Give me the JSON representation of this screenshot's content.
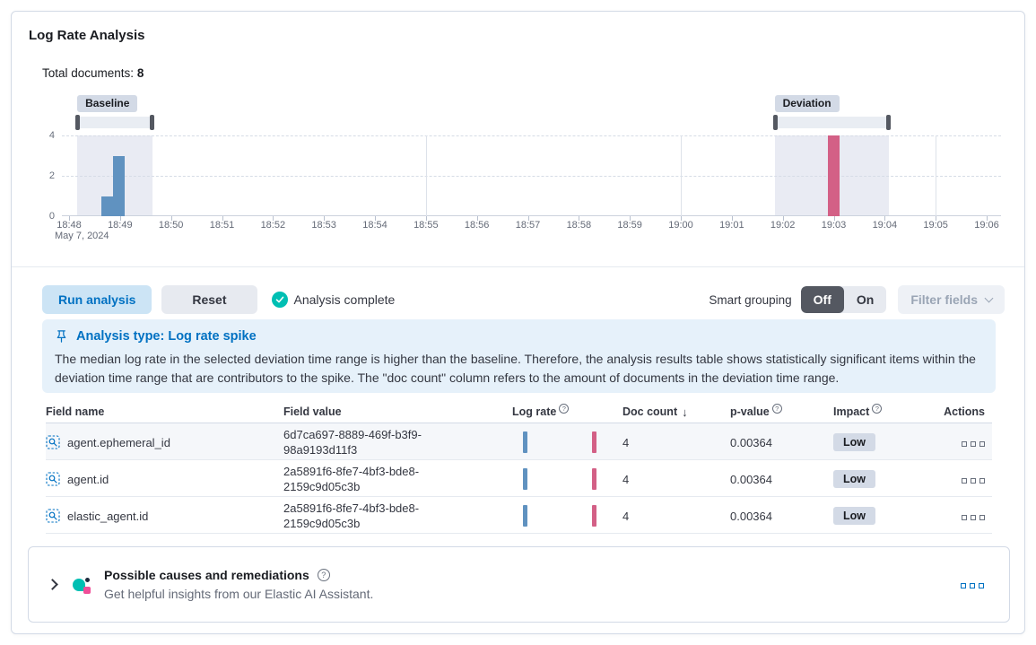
{
  "panel": {
    "title": "Log Rate Analysis"
  },
  "summary": {
    "label": "Total documents:",
    "value": "8"
  },
  "chart": {
    "baseline_badge": "Baseline",
    "deviation_badge": "Deviation",
    "date_label": "May 7, 2024",
    "y_ticks": [
      "4",
      "2",
      "0"
    ],
    "x_ticks": [
      "18:48",
      "18:49",
      "18:50",
      "18:51",
      "18:52",
      "18:53",
      "18:54",
      "18:55",
      "18:56",
      "18:57",
      "18:58",
      "18:59",
      "19:00",
      "19:01",
      "19:02",
      "19:03",
      "19:04",
      "19:05",
      "19:06"
    ]
  },
  "chart_data": {
    "type": "bar",
    "title": "Document count over time",
    "x_unit": "minutes offset from 18:48, May 7, 2024",
    "ylim": [
      0,
      4
    ],
    "y_gridline_values": [
      4,
      2
    ],
    "major_vertical_gridlines": [
      "18:55",
      "19:00",
      "19:05"
    ],
    "bars": [
      {
        "minute_offset": 0.75,
        "value": 1,
        "series": "baseline"
      },
      {
        "minute_offset": 0.97,
        "value": 3,
        "series": "baseline"
      },
      {
        "minute_offset": 15.0,
        "value": 4,
        "series": "deviation"
      }
    ],
    "baseline_range": {
      "from": 0.16,
      "to": 1.63
    },
    "deviation_range": {
      "from": 13.84,
      "to": 16.09
    },
    "colors": {
      "baseline_bar": "#6092c0",
      "deviation_bar": "#d36086",
      "selection_fill": "#e9ebf3"
    }
  },
  "toolbar": {
    "run_analysis": "Run analysis",
    "reset": "Reset",
    "status": "Analysis complete",
    "smart_grouping": "Smart grouping",
    "toggle_off": "Off",
    "toggle_on": "On",
    "filter_fields": "Filter fields"
  },
  "callout": {
    "title": "Analysis type: Log rate spike",
    "body": "The median log rate in the selected deviation time range is higher than the baseline. Therefore, the analysis results table shows statistically significant items within the deviation time range that are contributors to the spike. The \"doc count\" column refers to the amount of documents in the deviation time range."
  },
  "table": {
    "headers": {
      "field_name": "Field name",
      "field_value": "Field value",
      "log_rate": "Log rate",
      "doc_count": "Doc count",
      "p_value": "p-value",
      "impact": "Impact",
      "actions": "Actions"
    },
    "rows": [
      {
        "field_name": "agent.ephemeral_id",
        "field_value": "6d7ca697-8889-469f-b3f9-98a9193d11f3",
        "doc_count": "4",
        "p_value": "0.00364",
        "impact": "Low"
      },
      {
        "field_name": "agent.id",
        "field_value": "2a5891f6-8fe7-4bf3-bde8-2159c9d05c3b",
        "doc_count": "4",
        "p_value": "0.00364",
        "impact": "Low"
      },
      {
        "field_name": "elastic_agent.id",
        "field_value": "2a5891f6-8fe7-4bf3-bde8-2159c9d05c3b",
        "doc_count": "4",
        "p_value": "0.00364",
        "impact": "Low"
      }
    ]
  },
  "footer": {
    "title": "Possible causes and remediations",
    "subtitle": "Get helpful insights from our Elastic AI Assistant."
  }
}
